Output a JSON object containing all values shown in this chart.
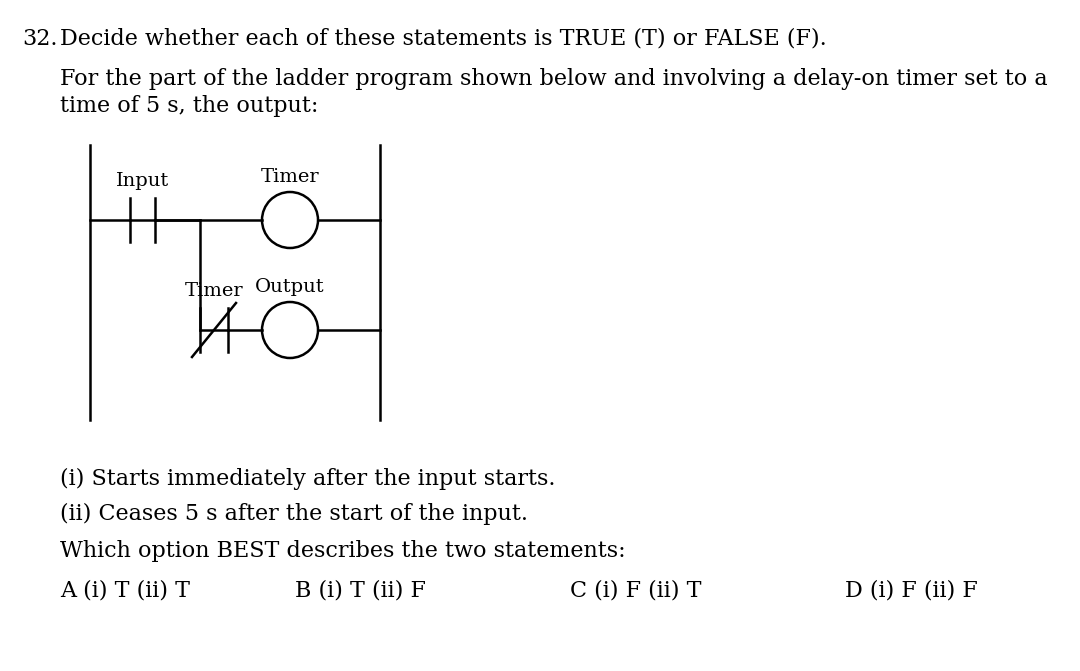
{
  "title_number": "32.",
  "title_text": "Decide whether each of these statements is TRUE (T) or FALSE (F).",
  "para_line1": "For the part of the ladder program shown below and involving a delay-on timer set to a",
  "para_line2": "time of 5 s, the output:",
  "statement_i": "(i) Starts immediately after the input starts.",
  "statement_ii": "(ii) Ceases 5 s after the start of the input.",
  "question": "Which option BEST describes the two statements:",
  "options": [
    "A (i) T (ii) T",
    "B (i) T (ii) F",
    "C (i) F (ii) T",
    "D (i) F (ii) F"
  ],
  "label_input": "Input",
  "label_timer_top": "Timer",
  "label_timer_bottom": "Timer",
  "label_output": "Output",
  "bg_color": "#ffffff",
  "text_color": "#000000",
  "font_size_main": 16,
  "font_size_diagram": 14,
  "lw": 1.8
}
